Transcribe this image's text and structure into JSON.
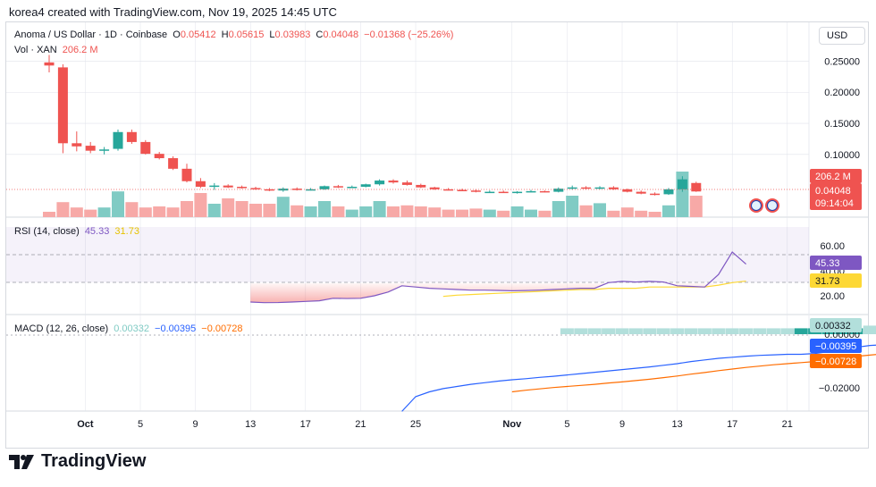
{
  "header": {
    "title": "korea4 created with TradingView.com, Nov 19, 2025 14:45 UTC"
  },
  "symbol": {
    "name": "Anoma / US Dollar · 1D · Coinbase",
    "o_label": "O",
    "o": "0.05412",
    "h_label": "H",
    "h": "0.05615",
    "l_label": "L",
    "l": "0.03983",
    "c_label": "C",
    "c": "0.04048",
    "change": "−0.01368 (−25.26%)"
  },
  "volume_legend": {
    "label": "Vol · XAN",
    "value": "206.2 M"
  },
  "currency_button": "USD",
  "price_badges": {
    "volume": "206.2 M",
    "price": "0.04048",
    "timer": "09:14:04"
  },
  "rsi_legend": {
    "label": "RSI (14, close)",
    "rsi": "45.33",
    "ma": "31.73"
  },
  "rsi_badges": {
    "rsi": "45.33",
    "ma": "31.73"
  },
  "macd_legend": {
    "label": "MACD (12, 26, close)",
    "hist": "0.00332",
    "macd": "−0.00395",
    "signal": "−0.00728"
  },
  "macd_badges": {
    "hist": "0.00332",
    "macd": "−0.00395",
    "signal": "−0.00728"
  },
  "brand": "TradingView",
  "colors": {
    "up": "#26a69a",
    "down": "#ef5350",
    "rsi": "#7e57c2",
    "rsi_ma": "#fdd835",
    "macd": "#2962ff",
    "signal": "#ff6d00",
    "grid": "#e0e3eb"
  },
  "chart_data": [
    {
      "type": "candlestick",
      "title": "Anoma / US Dollar · 1D · Coinbase",
      "x_tick_labels": [
        "Oct",
        "5",
        "9",
        "13",
        "17",
        "21",
        "25",
        "Nov",
        "5",
        "9",
        "13",
        "17",
        "21"
      ],
      "y_tick_labels": [
        "0.25000",
        "0.20000",
        "0.15000",
        "0.10000"
      ],
      "ylim": [
        0.015,
        0.265
      ],
      "candles": [
        {
          "o": 0.248,
          "h": 0.26,
          "l": 0.232,
          "c": 0.243
        },
        {
          "o": 0.24,
          "h": 0.245,
          "l": 0.102,
          "c": 0.118
        },
        {
          "o": 0.118,
          "h": 0.137,
          "l": 0.105,
          "c": 0.113
        },
        {
          "o": 0.114,
          "h": 0.12,
          "l": 0.102,
          "c": 0.106
        },
        {
          "o": 0.106,
          "h": 0.112,
          "l": 0.1,
          "c": 0.108
        },
        {
          "o": 0.109,
          "h": 0.14,
          "l": 0.106,
          "c": 0.136
        },
        {
          "o": 0.136,
          "h": 0.14,
          "l": 0.117,
          "c": 0.12
        },
        {
          "o": 0.12,
          "h": 0.123,
          "l": 0.1,
          "c": 0.101
        },
        {
          "o": 0.101,
          "h": 0.104,
          "l": 0.092,
          "c": 0.094
        },
        {
          "o": 0.094,
          "h": 0.097,
          "l": 0.075,
          "c": 0.077
        },
        {
          "o": 0.077,
          "h": 0.085,
          "l": 0.055,
          "c": 0.057
        },
        {
          "o": 0.057,
          "h": 0.062,
          "l": 0.046,
          "c": 0.048
        },
        {
          "o": 0.048,
          "h": 0.054,
          "l": 0.043,
          "c": 0.05
        },
        {
          "o": 0.05,
          "h": 0.052,
          "l": 0.046,
          "c": 0.047
        },
        {
          "o": 0.048,
          "h": 0.05,
          "l": 0.045,
          "c": 0.046
        },
        {
          "o": 0.046,
          "h": 0.048,
          "l": 0.043,
          "c": 0.044
        },
        {
          "o": 0.044,
          "h": 0.046,
          "l": 0.041,
          "c": 0.042
        },
        {
          "o": 0.042,
          "h": 0.047,
          "l": 0.04,
          "c": 0.045
        },
        {
          "o": 0.045,
          "h": 0.047,
          "l": 0.042,
          "c": 0.043
        },
        {
          "o": 0.043,
          "h": 0.046,
          "l": 0.042,
          "c": 0.044
        },
        {
          "o": 0.044,
          "h": 0.05,
          "l": 0.043,
          "c": 0.049
        },
        {
          "o": 0.049,
          "h": 0.051,
          "l": 0.046,
          "c": 0.047
        },
        {
          "o": 0.047,
          "h": 0.05,
          "l": 0.046,
          "c": 0.048
        },
        {
          "o": 0.048,
          "h": 0.053,
          "l": 0.047,
          "c": 0.052
        },
        {
          "o": 0.052,
          "h": 0.06,
          "l": 0.05,
          "c": 0.058
        },
        {
          "o": 0.058,
          "h": 0.06,
          "l": 0.053,
          "c": 0.055
        },
        {
          "o": 0.055,
          "h": 0.058,
          "l": 0.05,
          "c": 0.051
        },
        {
          "o": 0.051,
          "h": 0.053,
          "l": 0.046,
          "c": 0.047
        },
        {
          "o": 0.047,
          "h": 0.048,
          "l": 0.043,
          "c": 0.044
        },
        {
          "o": 0.044,
          "h": 0.046,
          "l": 0.042,
          "c": 0.043
        },
        {
          "o": 0.043,
          "h": 0.045,
          "l": 0.041,
          "c": 0.042
        },
        {
          "o": 0.042,
          "h": 0.044,
          "l": 0.039,
          "c": 0.04
        },
        {
          "o": 0.04,
          "h": 0.042,
          "l": 0.038,
          "c": 0.04
        },
        {
          "o": 0.04,
          "h": 0.042,
          "l": 0.038,
          "c": 0.039
        },
        {
          "o": 0.039,
          "h": 0.041,
          "l": 0.037,
          "c": 0.04
        },
        {
          "o": 0.04,
          "h": 0.043,
          "l": 0.039,
          "c": 0.041
        },
        {
          "o": 0.041,
          "h": 0.042,
          "l": 0.039,
          "c": 0.04
        },
        {
          "o": 0.04,
          "h": 0.047,
          "l": 0.039,
          "c": 0.045
        },
        {
          "o": 0.045,
          "h": 0.05,
          "l": 0.043,
          "c": 0.047
        },
        {
          "o": 0.047,
          "h": 0.049,
          "l": 0.044,
          "c": 0.046
        },
        {
          "o": 0.046,
          "h": 0.049,
          "l": 0.044,
          "c": 0.047
        },
        {
          "o": 0.047,
          "h": 0.049,
          "l": 0.043,
          "c": 0.044
        },
        {
          "o": 0.044,
          "h": 0.045,
          "l": 0.039,
          "c": 0.04
        },
        {
          "o": 0.04,
          "h": 0.042,
          "l": 0.036,
          "c": 0.037
        },
        {
          "o": 0.037,
          "h": 0.039,
          "l": 0.034,
          "c": 0.036
        },
        {
          "o": 0.036,
          "h": 0.046,
          "l": 0.035,
          "c": 0.044
        },
        {
          "o": 0.044,
          "h": 0.065,
          "l": 0.04,
          "c": 0.06
        },
        {
          "o": 0.05412,
          "h": 0.05615,
          "l": 0.03983,
          "c": 0.04048
        }
      ],
      "volume": [
        10,
        28,
        18,
        14,
        18,
        48,
        28,
        18,
        20,
        18,
        30,
        45,
        25,
        35,
        30,
        25,
        25,
        38,
        22,
        20,
        30,
        20,
        14,
        20,
        30,
        20,
        22,
        20,
        18,
        14,
        14,
        16,
        14,
        12,
        20,
        14,
        12,
        30,
        40,
        22,
        26,
        12,
        18,
        12,
        10,
        22,
        85,
        40
      ]
    },
    {
      "type": "line",
      "title": "RSI (14, close)",
      "y_tick_labels": [
        "60.00",
        "40.00",
        "20.00"
      ],
      "ylim": [
        10,
        75
      ],
      "first_index": 13,
      "series": [
        {
          "name": "RSI",
          "values": [
            15,
            14.5,
            14.6,
            15,
            15.5,
            16,
            18,
            17.8,
            18,
            20,
            23,
            28,
            27,
            26,
            25.5,
            25,
            24.5,
            24.5,
            24.3,
            24,
            24.2,
            24.5,
            25,
            25.5,
            26,
            26,
            30.5,
            31.5,
            31,
            31.5,
            31,
            28,
            27.5,
            27,
            37,
            55,
            45.33
          ]
        },
        {
          "name": "MA",
          "values": [
            null,
            null,
            null,
            null,
            null,
            null,
            null,
            null,
            null,
            null,
            null,
            null,
            null,
            null,
            19.5,
            20.5,
            21,
            21.5,
            22,
            22.5,
            23,
            23.5,
            24,
            24.5,
            25,
            25,
            26,
            26,
            26,
            27,
            27,
            27,
            27,
            27,
            28.5,
            30.5,
            31.73
          ]
        }
      ]
    },
    {
      "type": "line",
      "title": "MACD (12, 26, close)",
      "y_tick_labels": [
        "0.00000",
        "−0.02000"
      ],
      "ylim": [
        -0.028,
        0.006
      ],
      "first_index": 24,
      "series": [
        {
          "name": "Histogram",
          "values": [
            null,
            null,
            null,
            null,
            null,
            null,
            null,
            null,
            null,
            null,
            null,
            null,
            0.0022,
            0.0022,
            0.0022,
            0.0022,
            0.0022,
            0.0022,
            0.0022,
            0.0022,
            0.0022,
            0.0022,
            0.0022,
            0.0022,
            0.0022,
            0.0022,
            0.0022,
            0.0022,
            0.0022,
            0.0022,
            0.0022,
            0.0022,
            0.0022,
            0.0022,
            0.0032,
            0.00332
          ]
        },
        {
          "name": "MACD",
          "values": [
            -0.0288,
            -0.0233,
            -0.0215,
            -0.0203,
            -0.0195,
            -0.0187,
            -0.0181,
            -0.0175,
            -0.017,
            -0.0166,
            -0.0161,
            -0.0157,
            -0.0152,
            -0.0147,
            -0.0142,
            -0.0137,
            -0.0132,
            -0.0127,
            -0.0122,
            -0.0116,
            -0.011,
            -0.0102,
            -0.0096,
            -0.009,
            -0.0086,
            -0.0082,
            -0.0079,
            -0.0077,
            -0.0075,
            -0.0075,
            -0.0072,
            -0.0065,
            -0.0053,
            -0.0049,
            -0.0042,
            -0.00395
          ]
        },
        {
          "name": "Signal",
          "values": [
            null,
            null,
            null,
            null,
            null,
            null,
            null,
            null,
            -0.0215,
            -0.0209,
            -0.0204,
            -0.0199,
            -0.0195,
            -0.0191,
            -0.0187,
            -0.0182,
            -0.0178,
            -0.0173,
            -0.0168,
            -0.0162,
            -0.0156,
            -0.0149,
            -0.0143,
            -0.0136,
            -0.013,
            -0.0124,
            -0.0119,
            -0.0114,
            -0.011,
            -0.0106,
            -0.0102,
            -0.0098,
            -0.009,
            -0.0083,
            -0.0078,
            -0.00728
          ]
        }
      ]
    }
  ]
}
